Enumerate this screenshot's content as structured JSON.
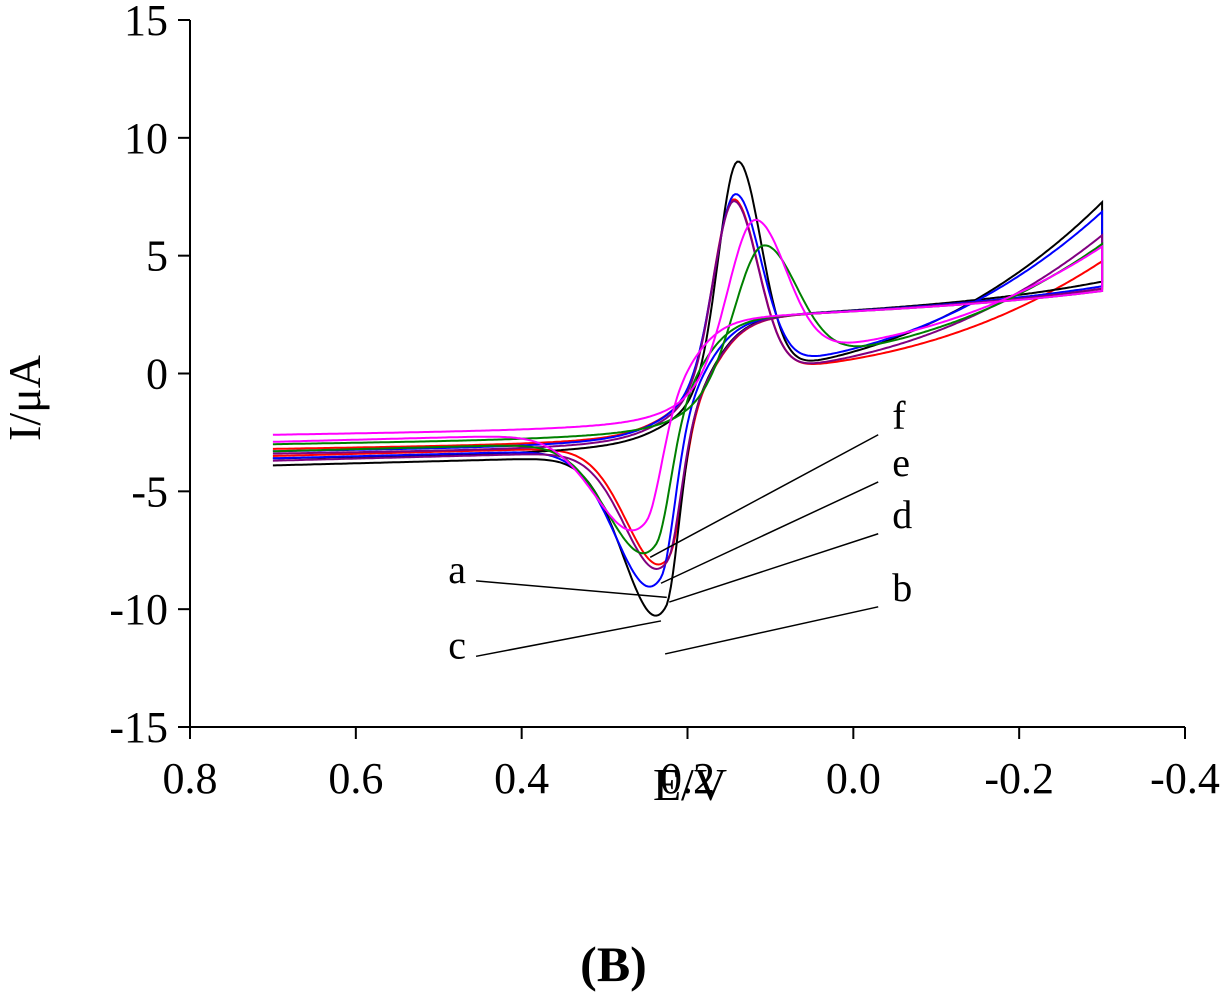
{
  "chart_data": {
    "type": "line",
    "title": "",
    "xlabel": "E/V",
    "ylabel": "I/μA",
    "xlim": [
      0.8,
      -0.4
    ],
    "ylim": [
      -15,
      15
    ],
    "x_axis_reversed": true,
    "x_ticks": [
      0.8,
      0.6,
      0.4,
      0.2,
      0.0,
      -0.2,
      -0.4
    ],
    "x_tick_labels": [
      "0.8",
      "0.6",
      "0.4",
      "0.2",
      "0.0",
      "-0.2",
      "-0.4"
    ],
    "y_ticks": [
      15,
      10,
      5,
      0,
      -5,
      -10,
      -15
    ],
    "y_tick_labels": [
      "15",
      "10",
      "5",
      "0",
      "-5",
      "-10",
      "-15"
    ],
    "grid": false,
    "legend": "none",
    "panel_label": "(B)",
    "series": [
      {
        "name": "a",
        "color": "#ff0000",
        "label_pos": "left",
        "label_point": [
          0.455,
          -8.8
        ],
        "peak_point": [
          0.225,
          -9.5
        ],
        "ox": 0.145,
        "oy": 10.0,
        "ow": 0.042,
        "rx": 0.222,
        "ry": -9.5,
        "rw": 0.03,
        "ss": 3.6,
        "se": 3.1,
        "bs": 2.6
      },
      {
        "name": "b",
        "color": "#000000",
        "label_pos": "right",
        "label_point": [
          -0.03,
          -9.9
        ],
        "peak_point": [
          0.227,
          -11.9
        ],
        "ox": 0.14,
        "oy": 11.7,
        "ow": 0.04,
        "rx": 0.226,
        "ry": -11.9,
        "rw": 0.03,
        "ss": 3.9,
        "se": 5.6,
        "bs": 3.0
      },
      {
        "name": "c",
        "color": "#0000ff",
        "label_pos": "left",
        "label_point": [
          0.455,
          -12.0
        ],
        "peak_point": [
          0.232,
          -10.5
        ],
        "ox": 0.143,
        "oy": 10.1,
        "ow": 0.044,
        "rx": 0.232,
        "ry": -10.5,
        "rw": 0.032,
        "ss": 3.7,
        "se": 5.2,
        "bs": 2.7
      },
      {
        "name": "d",
        "color": "#800080",
        "label_pos": "right",
        "label_point": [
          -0.03,
          -6.8
        ],
        "peak_point": [
          0.222,
          -9.7
        ],
        "ox": 0.145,
        "oy": 10.0,
        "ow": 0.042,
        "rx": 0.224,
        "ry": -9.7,
        "rw": 0.03,
        "ss": 3.6,
        "se": 4.2,
        "bs": 2.8
      },
      {
        "name": "e",
        "color": "#008000",
        "label_pos": "right",
        "label_point": [
          -0.03,
          -4.6
        ],
        "peak_point": [
          0.232,
          -8.9
        ],
        "ox": 0.11,
        "oy": 7.6,
        "ow": 0.058,
        "rx": 0.238,
        "ry": -8.9,
        "rw": 0.034,
        "ss": 3.5,
        "se": 3.8,
        "bs": 2.4
      },
      {
        "name": "f",
        "color": "#ff00ff",
        "label_pos": "right",
        "label_point": [
          -0.03,
          -2.6
        ],
        "peak_point": [
          0.245,
          -7.8
        ],
        "ox": 0.12,
        "oy": 8.4,
        "ow": 0.054,
        "rx": 0.25,
        "ry": -7.8,
        "rw": 0.036,
        "ss": 3.5,
        "se": 3.7,
        "bs": 2.0
      }
    ]
  }
}
